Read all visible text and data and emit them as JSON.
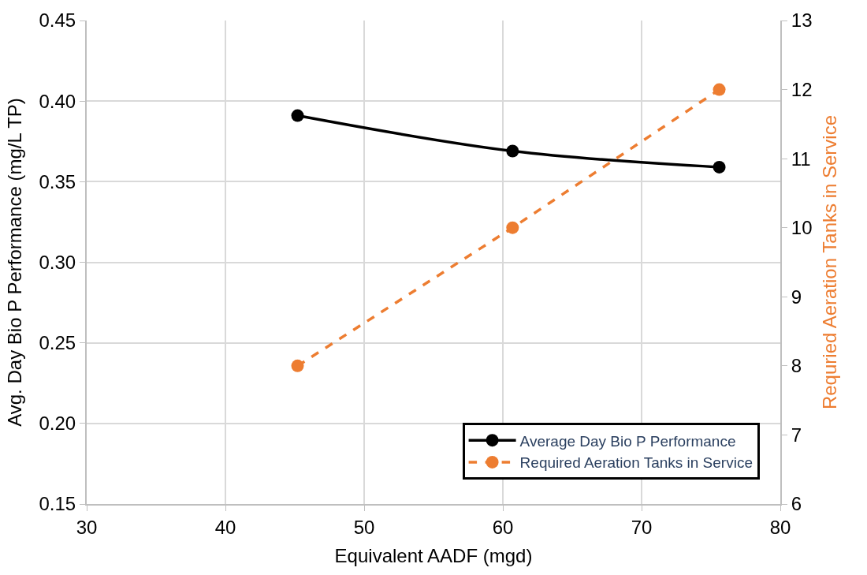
{
  "chart_data": {
    "type": "line",
    "xlabel": "Equivalent AADF (mgd)",
    "ylabel": "Avg. Day Bio P Performance (mg/L TP)",
    "y2label": "Requried Aeration Tanks in Service",
    "x": [
      45.2,
      60.7,
      75.6
    ],
    "series": [
      {
        "name": "Average Day Bio P Performance",
        "color": "#000000",
        "values": [
          0.391,
          0.369,
          0.359
        ],
        "line_style": "solid",
        "marker": "circle"
      },
      {
        "name": "Required Aeration Tanks in Service",
        "color": "#ed7d31",
        "values": [
          8,
          10,
          12
        ],
        "axis": "y2",
        "line_style": "dashed",
        "marker": "circle"
      }
    ],
    "xlim": [
      30,
      80
    ],
    "xticks": [
      30,
      40,
      50,
      60,
      70,
      80
    ],
    "ylim": [
      0.15,
      0.45
    ],
    "yticks": [
      {
        "value": 0.15,
        "label": "0.15"
      },
      {
        "value": 0.2,
        "label": "0.20"
      },
      {
        "value": 0.25,
        "label": "0.25"
      },
      {
        "value": 0.3,
        "label": "0.30"
      },
      {
        "value": 0.35,
        "label": "0.35"
      },
      {
        "value": 0.4,
        "label": "0.40"
      },
      {
        "value": 0.45,
        "label": "0.45"
      }
    ],
    "y2lim": [
      6,
      13
    ],
    "y2ticks": [
      6,
      7,
      8,
      9,
      10,
      11,
      12,
      13
    ],
    "grid": true,
    "legend": "bottom right"
  }
}
